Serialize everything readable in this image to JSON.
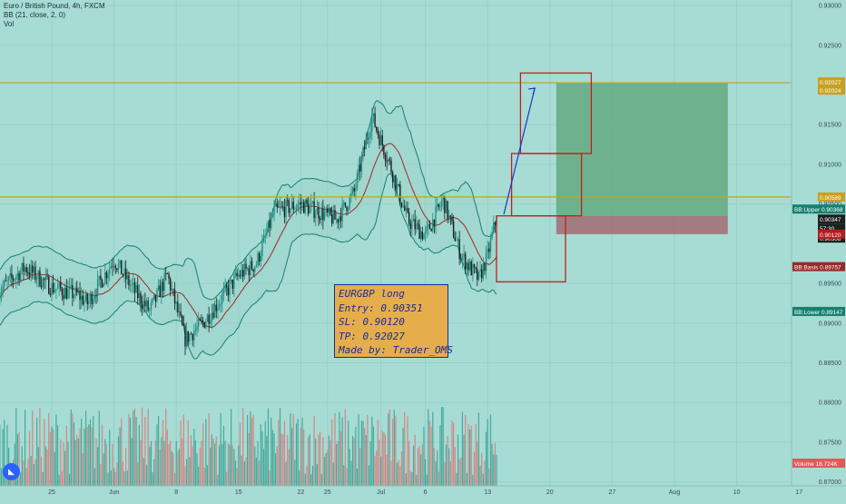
{
  "header": {
    "symbol_line": "Euro / British Pound, 4h, FXCM",
    "indicator_line": "BB (21, close, 2, 0)",
    "volume_line": "Vol"
  },
  "note": {
    "lines": [
      "EURGBP long",
      "Entry: 0.90351",
      "SL: 0.90120",
      "TP: 0.92027",
      "Made by: Trader_OMS"
    ]
  },
  "colors": {
    "background": "#a6dcd4",
    "up_candle": "#1f8f83",
    "down_candle": "#1f1f1f",
    "bb_band": "#17806f",
    "bb_basis": "#9b2a2a",
    "level_line": "#c8a020",
    "target_zone": "#5fa87a",
    "stop_zone": "#a25c65",
    "boxes": "#c02020",
    "arrow": "#2030c8",
    "vol_up": "#2f9c8c",
    "vol_down": "#e07070"
  },
  "chart_data": {
    "type": "candlestick",
    "title": "Euro / British Pound, 4h, FXCM",
    "y_axis": {
      "ylim": [
        0.8695,
        0.9307
      ],
      "ticks": [
        "0.93000",
        "0.92500",
        "0.91500",
        "0.91000",
        "0.90500",
        "0.89500",
        "0.89000",
        "0.88500",
        "0.88000",
        "0.87500",
        "0.87000"
      ],
      "tick_values": [
        0.93,
        0.925,
        0.915,
        0.91,
        0.905,
        0.895,
        0.89,
        0.885,
        0.88,
        0.875,
        0.87
      ]
    },
    "x_axis": {
      "labels": [
        "25",
        "Jun",
        "8",
        "15",
        "22",
        "25",
        "Jul",
        "6",
        "13",
        "20",
        "27",
        "Aug",
        "10",
        "17"
      ],
      "label_dates": [
        "2020-05-25",
        "2020-06-01",
        "2020-06-08",
        "2020-06-15",
        "2020-06-22",
        "2020-06-25",
        "2020-07-01",
        "2020-07-06",
        "2020-07-13",
        "2020-07-20",
        "2020-07-27",
        "2020-08-03",
        "2020-08-10",
        "2020-08-17"
      ]
    },
    "price_path": [
      {
        "date": "2020-05-19",
        "close": 0.894
      },
      {
        "date": "2020-05-22",
        "close": 0.897
      },
      {
        "date": "2020-05-25",
        "close": 0.8945
      },
      {
        "date": "2020-05-28",
        "close": 0.8935
      },
      {
        "date": "2020-05-29",
        "close": 0.8925
      },
      {
        "date": "2020-06-01",
        "close": 0.898
      },
      {
        "date": "2020-06-03",
        "close": 0.8945
      },
      {
        "date": "2020-06-05",
        "close": 0.8915
      },
      {
        "date": "2020-06-07",
        "close": 0.896
      },
      {
        "date": "2020-06-09",
        "close": 0.888
      },
      {
        "date": "2020-06-11",
        "close": 0.89
      },
      {
        "date": "2020-06-15",
        "close": 0.896
      },
      {
        "date": "2020-06-17",
        "close": 0.8975
      },
      {
        "date": "2020-06-19",
        "close": 0.904
      },
      {
        "date": "2020-06-22",
        "close": 0.905
      },
      {
        "date": "2020-06-24",
        "close": 0.904
      },
      {
        "date": "2020-06-26",
        "close": 0.903
      },
      {
        "date": "2020-06-28",
        "close": 0.9065
      },
      {
        "date": "2020-06-30",
        "close": 0.916
      },
      {
        "date": "2020-07-02",
        "close": 0.91
      },
      {
        "date": "2020-07-04",
        "close": 0.903
      },
      {
        "date": "2020-07-06",
        "close": 0.901
      },
      {
        "date": "2020-07-08",
        "close": 0.9055
      },
      {
        "date": "2020-07-10",
        "close": 0.8985
      },
      {
        "date": "2020-07-12",
        "close": 0.8955
      },
      {
        "date": "2020-07-13",
        "close": 0.8985
      },
      {
        "date": "2020-07-14",
        "close": 0.9035
      }
    ],
    "indicators": {
      "bb_upper": 0.90368,
      "bb_basis": 0.89757,
      "bb_lower": 0.89147
    },
    "price_labels": [
      {
        "label": "",
        "value": "0.92027",
        "color": "#c8a020"
      },
      {
        "label": "",
        "value": "0.92024",
        "color": "#c8a020"
      },
      {
        "label": "",
        "value": "0.90589",
        "color": "#c8a020"
      },
      {
        "label": "BB:Upper",
        "value": "0.90368",
        "color": "#17806f"
      },
      {
        "label": "",
        "value": "0.90347",
        "color": "#1f1f1f"
      },
      {
        "label": "",
        "value": "57:30",
        "color": "#1f1f1f"
      },
      {
        "label": "",
        "value": "0.90308",
        "color": "#1f1f1f"
      },
      {
        "label": "",
        "value": "0.90120",
        "color": "#b11e1e"
      },
      {
        "label": "BB:Basis",
        "value": "0.89757",
        "color": "#9b2a2a"
      },
      {
        "label": "BB:Lower",
        "value": "0.89147",
        "color": "#17806f"
      },
      {
        "label": "Volume",
        "value": "18.724K",
        "color": "#e05a5a"
      }
    ],
    "levels": [
      0.92027,
      0.90589
    ],
    "position": {
      "entry": 0.90351,
      "stop_loss": 0.9012,
      "take_profit": 0.92027
    }
  }
}
